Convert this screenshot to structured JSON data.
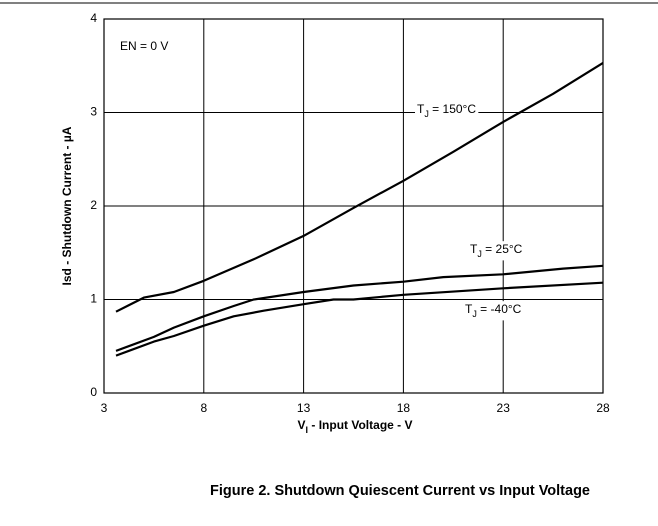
{
  "chart_data": {
    "type": "line",
    "annotation": "EN = 0 V",
    "xlabel": "VI - Input Voltage - V",
    "ylabel": "Isd - Shutdown Current - µA",
    "caption": "Figure 2. Shutdown Quiescent Current vs Input Voltage",
    "xlim": [
      3,
      28
    ],
    "ylim": [
      0,
      4
    ],
    "xticks": [
      3,
      8,
      13,
      18,
      23,
      28
    ],
    "yticks": [
      0,
      1,
      2,
      3,
      4
    ],
    "grid": true,
    "series": [
      {
        "name": "TJ = 150°C",
        "color": "#000000",
        "x": [
          3.6,
          5,
          6.5,
          8,
          10.5,
          13,
          15.5,
          18,
          20.5,
          23,
          25.5,
          28
        ],
        "values": [
          0.87,
          1.02,
          1.08,
          1.2,
          1.43,
          1.68,
          1.98,
          2.27,
          2.58,
          2.9,
          3.2,
          3.53
        ]
      },
      {
        "name": "TJ = 25°C",
        "color": "#000000",
        "x": [
          3.6,
          5.5,
          6.5,
          8,
          9.5,
          10.5,
          13,
          15.5,
          18,
          20,
          23,
          26,
          28
        ],
        "values": [
          0.45,
          0.6,
          0.7,
          0.82,
          0.93,
          1.0,
          1.08,
          1.15,
          1.19,
          1.24,
          1.27,
          1.33,
          1.36
        ]
      },
      {
        "name": "TJ = -40°C",
        "color": "#000000",
        "x": [
          3.6,
          5.5,
          6.5,
          8,
          9.5,
          11,
          13,
          14.5,
          15.5,
          18,
          23,
          28
        ],
        "values": [
          0.4,
          0.55,
          0.61,
          0.72,
          0.82,
          0.88,
          0.95,
          1.0,
          1.0,
          1.05,
          1.12,
          1.18
        ]
      }
    ]
  }
}
